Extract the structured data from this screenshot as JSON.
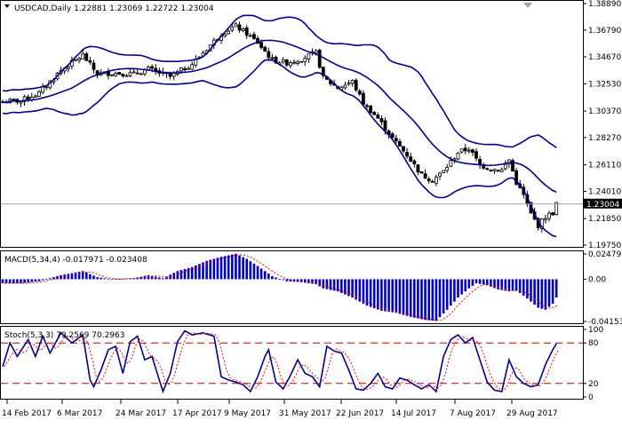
{
  "window": {
    "symbol_line": "USDCAD,Daily  1.22881 1.23069 1.22722 1.23004",
    "macd_line": "MACD(5,34,4) -0.017971 -0.023408",
    "stoch_line": "Stoch(5,3,3) 79.2569 70.2963"
  },
  "colors": {
    "bands": "#00008b",
    "bars": "#000000",
    "macd_hist": "#0000cd",
    "macd_signal": "#ff0000",
    "stoch_main": "#00008b",
    "stoch_signal": "#ff0000",
    "stoch_levels": "#c00000",
    "current_price_bg": "#000000",
    "current_price_fg": "#ffffff",
    "grid": "#c0c0c0"
  },
  "chart_data": [
    {
      "type": "candlestick",
      "name": "price",
      "title": "USDCAD,Daily",
      "ohlc_header": [
        "1.22881",
        "1.23069",
        "1.22722",
        "1.23004"
      ],
      "y_ticks": [
        "1.38890",
        "1.36790",
        "1.34670",
        "1.32530",
        "1.30370",
        "1.28270",
        "1.26110",
        "1.24010",
        "1.21850",
        "1.19750"
      ],
      "ylim": [
        1.1975,
        1.3889
      ],
      "current_price": "1.23004",
      "current_price_value": 1.23004,
      "x_ticks": [
        "14 Feb 2017",
        "6 Mar 2017",
        "24 Mar 2017",
        "17 Apr 2017",
        "9 May 2017",
        "31 May 2017",
        "22 Jun 2017",
        "14 Jul 2017",
        "7 Aug 2017",
        "29 Aug 2017"
      ],
      "indicators": [
        "Bollinger Bands (upper, middle, lower)"
      ],
      "close_keypoints": [
        [
          0,
          1.311
        ],
        [
          5,
          1.312
        ],
        [
          10,
          1.318
        ],
        [
          16,
          1.336
        ],
        [
          22,
          1.348
        ],
        [
          26,
          1.333
        ],
        [
          30,
          1.334
        ],
        [
          36,
          1.333
        ],
        [
          40,
          1.337
        ],
        [
          46,
          1.331
        ],
        [
          52,
          1.341
        ],
        [
          56,
          1.353
        ],
        [
          60,
          1.365
        ],
        [
          64,
          1.371
        ],
        [
          67,
          1.365
        ],
        [
          70,
          1.358
        ],
        [
          74,
          1.344
        ],
        [
          78,
          1.342
        ],
        [
          82,
          1.345
        ],
        [
          86,
          1.35
        ],
        [
          88,
          1.33
        ],
        [
          92,
          1.322
        ],
        [
          96,
          1.327
        ],
        [
          99,
          1.31
        ],
        [
          103,
          1.298
        ],
        [
          107,
          1.282
        ],
        [
          111,
          1.269
        ],
        [
          115,
          1.253
        ],
        [
          118,
          1.249
        ],
        [
          121,
          1.256
        ],
        [
          125,
          1.271
        ],
        [
          128,
          1.274
        ],
        [
          131,
          1.261
        ],
        [
          134,
          1.258
        ],
        [
          137,
          1.257
        ],
        [
          139,
          1.265
        ],
        [
          141,
          1.247
        ],
        [
          143,
          1.237
        ],
        [
          145,
          1.222
        ],
        [
          147,
          1.213
        ],
        [
          149,
          1.22
        ],
        [
          151,
          1.223
        ],
        [
          152,
          1.23
        ]
      ]
    },
    {
      "type": "bar",
      "name": "MACD",
      "label": "MACD(5,34,4)",
      "values_header": [
        "-0.017971",
        "-0.023408"
      ],
      "y_ticks": [
        "0.024796",
        "0.00",
        "-0.041536"
      ],
      "ylim": [
        -0.0415,
        0.0248
      ],
      "hist_keypoints": [
        [
          0,
          -0.004
        ],
        [
          5,
          -0.004
        ],
        [
          10,
          -0.002
        ],
        [
          16,
          0.004
        ],
        [
          22,
          0.008
        ],
        [
          26,
          0.002
        ],
        [
          30,
          0.0
        ],
        [
          36,
          0.001
        ],
        [
          40,
          0.004
        ],
        [
          44,
          0.001
        ],
        [
          48,
          0.008
        ],
        [
          52,
          0.012
        ],
        [
          56,
          0.018
        ],
        [
          60,
          0.022
        ],
        [
          64,
          0.025
        ],
        [
          67,
          0.02
        ],
        [
          70,
          0.013
        ],
        [
          74,
          0.003
        ],
        [
          78,
          -0.002
        ],
        [
          82,
          -0.003
        ],
        [
          86,
          -0.005
        ],
        [
          88,
          -0.009
        ],
        [
          92,
          -0.012
        ],
        [
          96,
          -0.018
        ],
        [
          100,
          -0.026
        ],
        [
          104,
          -0.031
        ],
        [
          108,
          -0.033
        ],
        [
          112,
          -0.037
        ],
        [
          116,
          -0.04
        ],
        [
          119,
          -0.041
        ],
        [
          122,
          -0.03
        ],
        [
          125,
          -0.018
        ],
        [
          128,
          -0.009
        ],
        [
          130,
          -0.004
        ],
        [
          133,
          -0.006
        ],
        [
          136,
          -0.01
        ],
        [
          139,
          -0.012
        ],
        [
          141,
          -0.011
        ],
        [
          143,
          -0.016
        ],
        [
          145,
          -0.022
        ],
        [
          147,
          -0.028
        ],
        [
          149,
          -0.03
        ],
        [
          151,
          -0.024
        ],
        [
          152,
          -0.018
        ]
      ],
      "signal_lag": 2
    },
    {
      "type": "line",
      "name": "Stochastic",
      "label": "Stoch(5,3,3)",
      "values_header": [
        "79.2569",
        "70.2963"
      ],
      "y_ticks": [
        "100",
        "80",
        "20",
        "0"
      ],
      "ylim": [
        0,
        100
      ],
      "levels": [
        80,
        20
      ],
      "main_keypoints": [
        [
          0,
          45
        ],
        [
          2,
          80
        ],
        [
          4,
          60
        ],
        [
          7,
          85
        ],
        [
          9,
          60
        ],
        [
          11,
          90
        ],
        [
          13,
          65
        ],
        [
          16,
          95
        ],
        [
          19,
          80
        ],
        [
          22,
          92
        ],
        [
          24,
          25
        ],
        [
          25,
          15
        ],
        [
          27,
          40
        ],
        [
          29,
          70
        ],
        [
          31,
          75
        ],
        [
          33,
          35
        ],
        [
          35,
          82
        ],
        [
          37,
          90
        ],
        [
          39,
          55
        ],
        [
          41,
          60
        ],
        [
          43,
          25
        ],
        [
          44,
          8
        ],
        [
          46,
          35
        ],
        [
          48,
          82
        ],
        [
          50,
          98
        ],
        [
          52,
          92
        ],
        [
          55,
          95
        ],
        [
          58,
          90
        ],
        [
          60,
          30
        ],
        [
          62,
          25
        ],
        [
          64,
          22
        ],
        [
          66,
          18
        ],
        [
          68,
          8
        ],
        [
          70,
          30
        ],
        [
          72,
          60
        ],
        [
          73,
          70
        ],
        [
          75,
          22
        ],
        [
          77,
          12
        ],
        [
          79,
          32
        ],
        [
          81,
          55
        ],
        [
          83,
          35
        ],
        [
          85,
          30
        ],
        [
          87,
          15
        ],
        [
          89,
          75
        ],
        [
          91,
          68
        ],
        [
          93,
          65
        ],
        [
          95,
          40
        ],
        [
          97,
          12
        ],
        [
          99,
          10
        ],
        [
          101,
          20
        ],
        [
          103,
          35
        ],
        [
          105,
          15
        ],
        [
          107,
          12
        ],
        [
          109,
          28
        ],
        [
          111,
          25
        ],
        [
          113,
          18
        ],
        [
          115,
          12
        ],
        [
          117,
          18
        ],
        [
          119,
          8
        ],
        [
          121,
          60
        ],
        [
          123,
          85
        ],
        [
          125,
          92
        ],
        [
          127,
          80
        ],
        [
          129,
          88
        ],
        [
          131,
          55
        ],
        [
          133,
          22
        ],
        [
          135,
          10
        ],
        [
          137,
          8
        ],
        [
          139,
          55
        ],
        [
          141,
          30
        ],
        [
          143,
          20
        ],
        [
          145,
          15
        ],
        [
          147,
          18
        ],
        [
          149,
          48
        ],
        [
          151,
          70
        ],
        [
          152,
          79
        ]
      ],
      "signal_lag": 2
    }
  ]
}
